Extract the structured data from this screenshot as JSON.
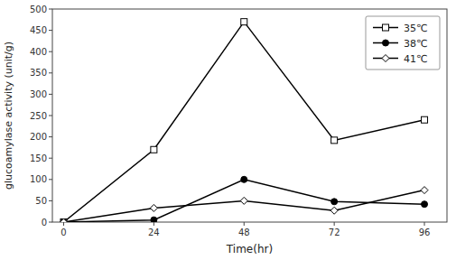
{
  "chart_data": {
    "type": "line",
    "xlabel": "Time(hr)",
    "ylabel": "glucoamylase activity (unit/g)",
    "x": [
      0,
      24,
      48,
      72,
      96
    ],
    "series": [
      {
        "name": "35℃",
        "color": "black",
        "marker": "square-open",
        "values": [
          0,
          170,
          470,
          192,
          240
        ]
      },
      {
        "name": "38℃",
        "color": "black",
        "marker": "circle",
        "values": [
          0,
          5,
          100,
          48,
          42
        ]
      },
      {
        "name": "41℃",
        "color": "black",
        "marker": "diamond-open",
        "values": [
          0,
          33,
          50,
          27,
          75
        ]
      }
    ],
    "xlim": [
      -3,
      102
    ],
    "ylim": [
      0,
      500
    ],
    "xticks": [
      0,
      24,
      48,
      72,
      96
    ],
    "yticks": [
      0,
      50,
      100,
      150,
      200,
      250,
      300,
      350,
      400,
      450,
      500
    ],
    "grid": false,
    "legend": "upper right"
  }
}
